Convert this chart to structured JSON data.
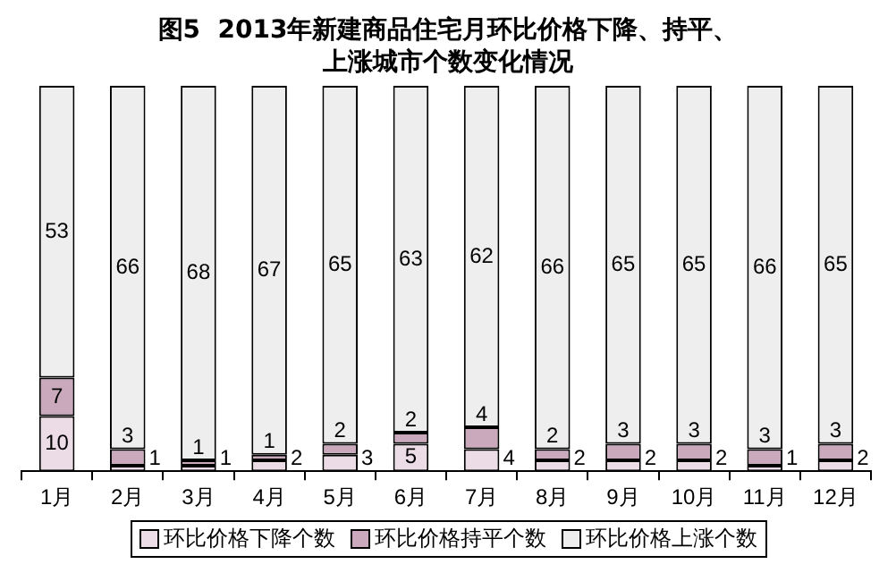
{
  "chart_data": {
    "type": "bar",
    "title": "图5  2013年新建商品住宅月环比价格下降、持平、上涨城市个数变化情况",
    "categories": [
      "1月",
      "2月",
      "3月",
      "4月",
      "5月",
      "6月",
      "7月",
      "8月",
      "9月",
      "10月",
      "11月",
      "12月"
    ],
    "stacked": true,
    "data_labels": true,
    "legend": "bottom",
    "series": [
      {
        "name": "环比价格下降个数",
        "color": "#ecdce6",
        "values": [
          10,
          1,
          1,
          2,
          3,
          5,
          4,
          2,
          2,
          2,
          1,
          2
        ]
      },
      {
        "name": "环比价格持平个数",
        "color": "#c9a9bb",
        "values": [
          7,
          3,
          1,
          1,
          2,
          2,
          4,
          2,
          3,
          3,
          3,
          3
        ]
      },
      {
        "name": "环比价格上涨个数",
        "color": "#eeeeee",
        "values": [
          53,
          66,
          68,
          67,
          65,
          63,
          62,
          66,
          65,
          65,
          66,
          65
        ]
      }
    ]
  }
}
